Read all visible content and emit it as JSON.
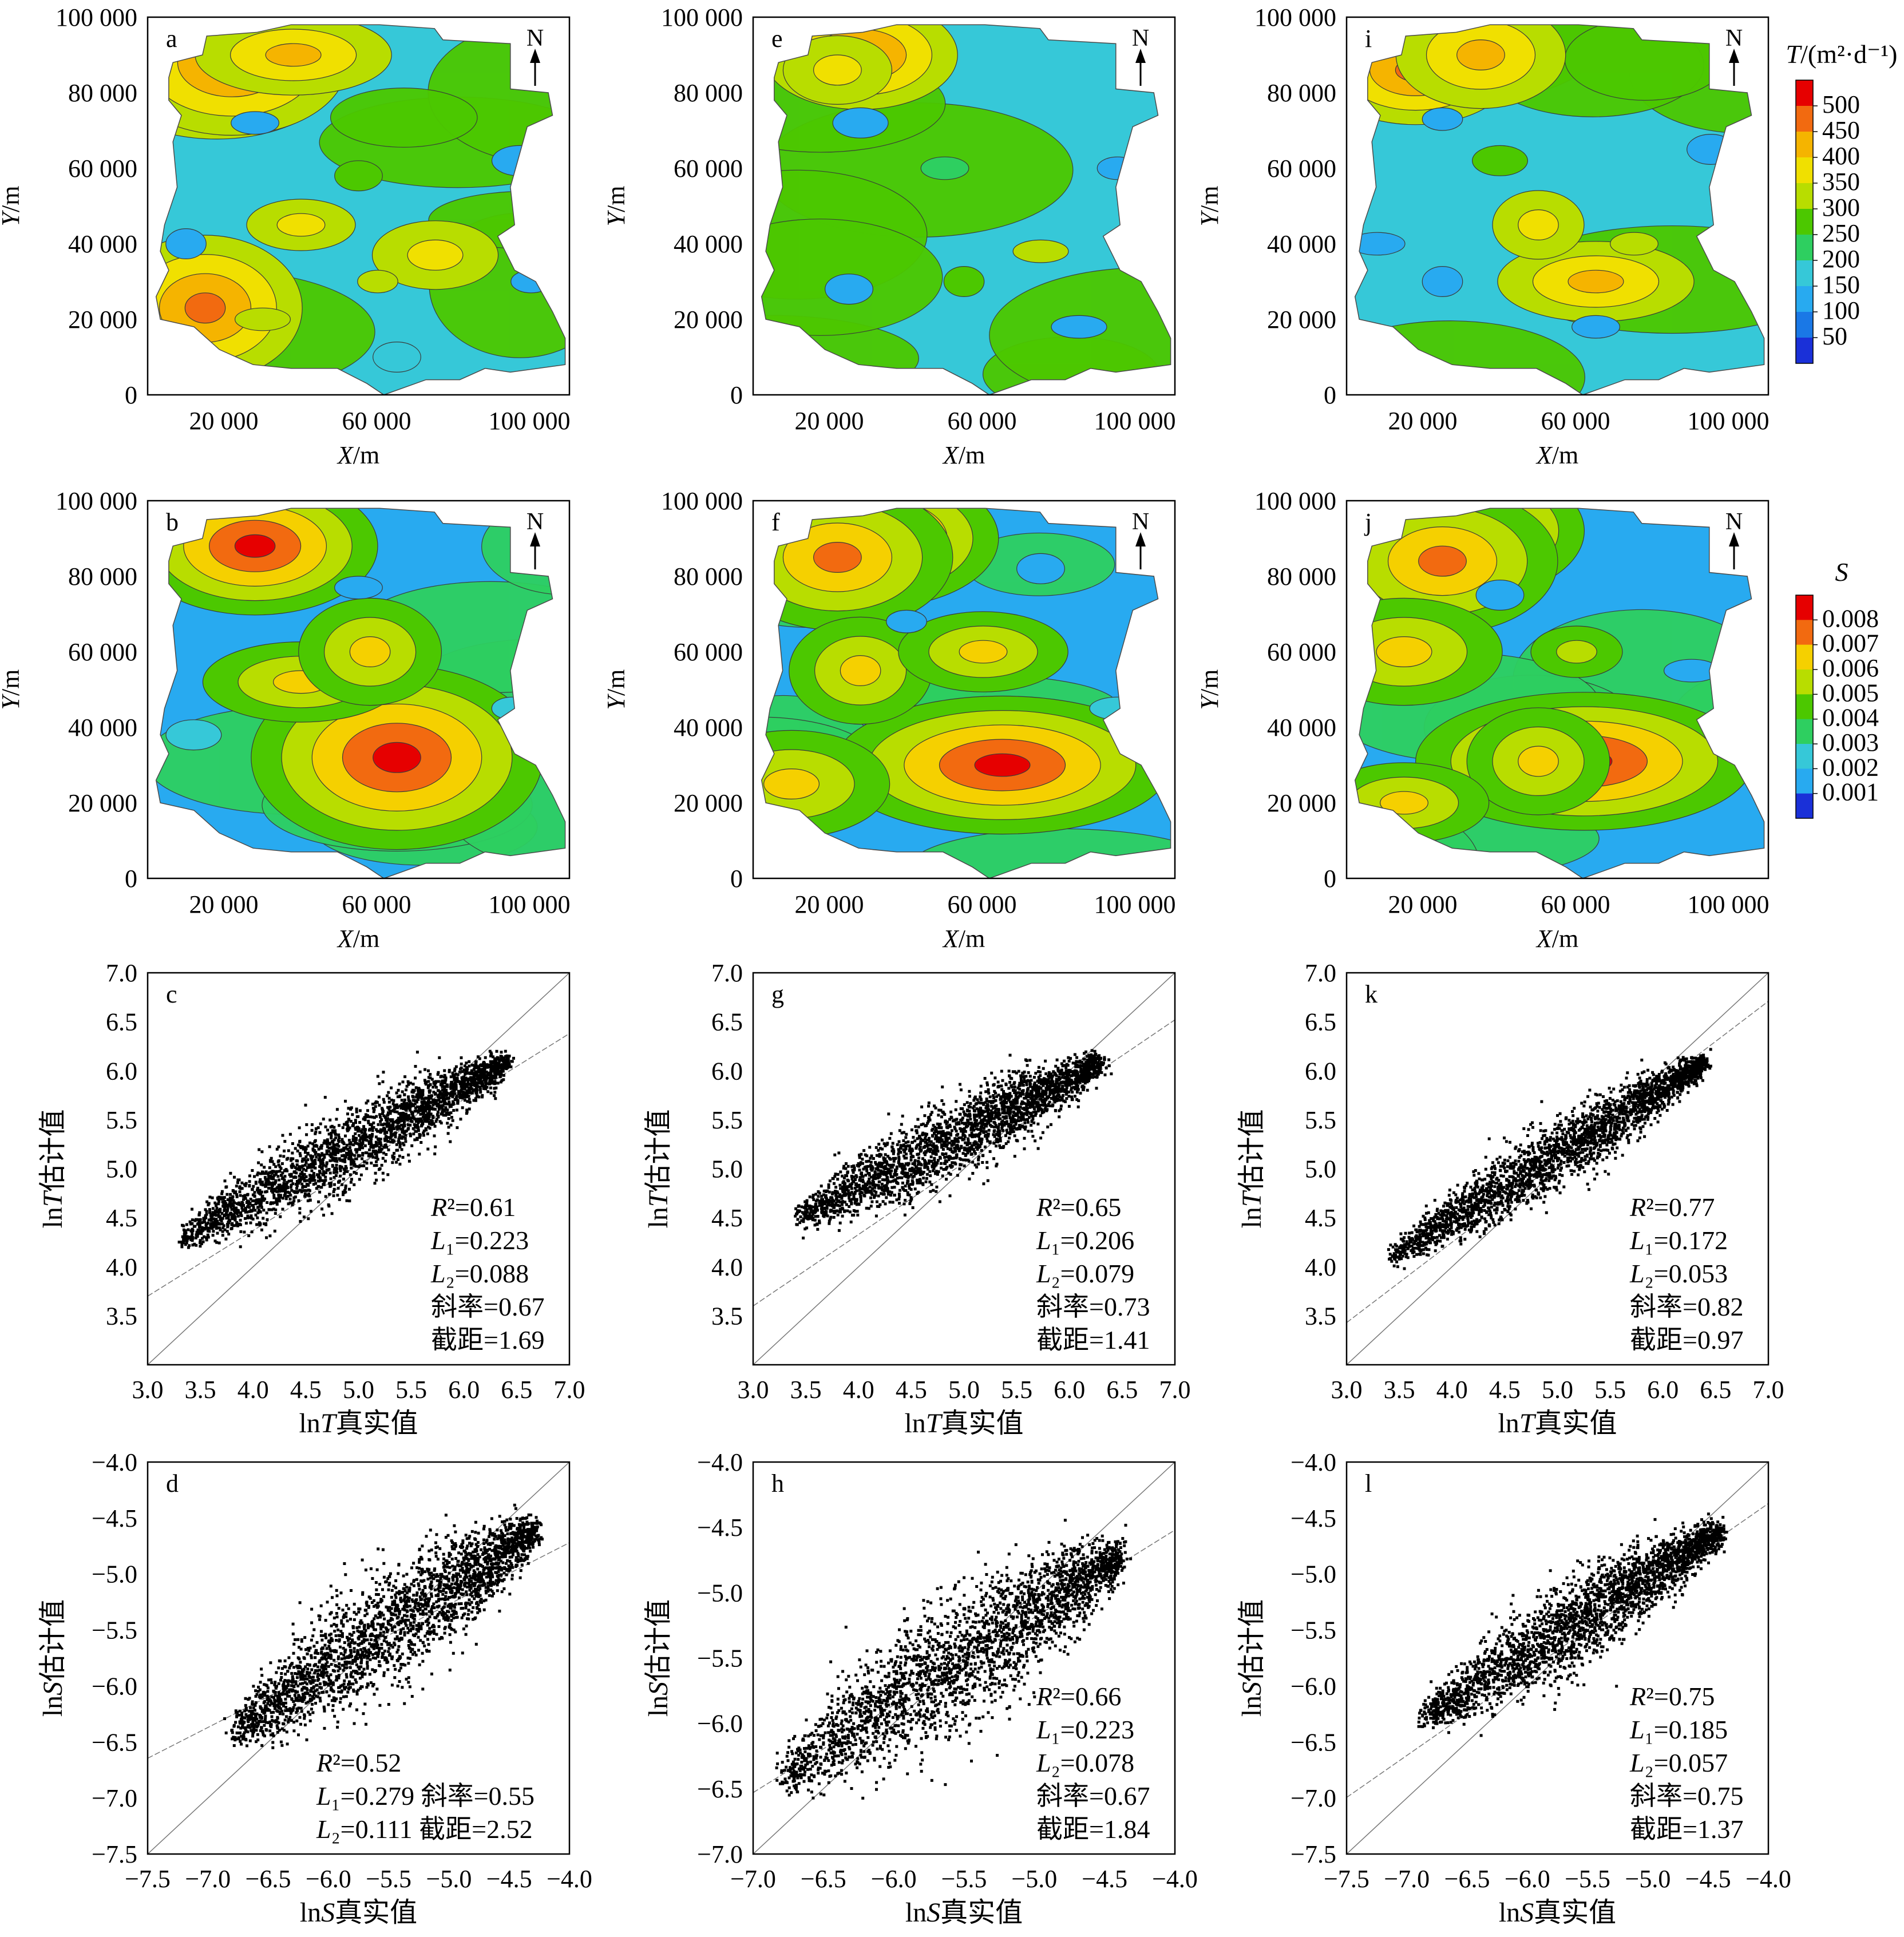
{
  "units": {
    "x": "m",
    "y": "m",
    "x_var": "X",
    "y_var": "Y",
    "t_var": "ln T",
    "s_var": "ln S",
    "est_suffix": "估计值",
    "true_suffix": "真实值"
  },
  "north_label": "N",
  "colorbars": [
    {
      "title_var": "T",
      "title_unit": "(m²·d⁻¹)",
      "title": "T/(m²·d⁻¹)",
      "ticks": [
        "500",
        "450",
        "400",
        "350",
        "300",
        "250",
        "200",
        "150",
        "100",
        "50"
      ],
      "colors": [
        "#e60000",
        "#f26a10",
        "#f5b400",
        "#f0e000",
        "#b8dd00",
        "#4cc800",
        "#2ecf60",
        "#36c8d8",
        "#28aaf0",
        "#1a78e6",
        "#1a30d8"
      ]
    },
    {
      "title_var": "S",
      "title": "S",
      "ticks": [
        "0.008",
        "0.007",
        "0.006",
        "0.005",
        "0.004",
        "0.003",
        "0.002",
        "0.001"
      ],
      "colors": [
        "#e60000",
        "#f26a10",
        "#f5d000",
        "#b8dd00",
        "#4cc800",
        "#2ecf60",
        "#36c8d8",
        "#28aaf0",
        "#1a30d8"
      ]
    }
  ],
  "chart_data": [
    {
      "panel": "a",
      "type": "heatmap",
      "field": "T",
      "colormap": "T",
      "xlabel": "X/m",
      "ylabel": "Y/m",
      "x_ticks": [
        "20 000",
        "60 000",
        "100 000"
      ],
      "y_ticks": [
        "100 000",
        "80 000",
        "60 000",
        "40 000",
        "20 000",
        "0"
      ],
      "xlim": [
        0,
        110000
      ],
      "ylim": [
        0,
        100000
      ],
      "zones": [
        {
          "x": 18000,
          "y": 86000,
          "value": 500
        },
        {
          "x": 22000,
          "y": 88000,
          "value": 450
        },
        {
          "x": 38000,
          "y": 90000,
          "value": 400
        },
        {
          "x": 15000,
          "y": 23000,
          "value": 450
        },
        {
          "x": 40000,
          "y": 45000,
          "value": 350
        },
        {
          "x": 75000,
          "y": 37000,
          "value": 350
        },
        {
          "x": 60000,
          "y": 30000,
          "value": 300
        },
        {
          "x": 55000,
          "y": 58000,
          "value": 250
        },
        {
          "x": 30000,
          "y": 20000,
          "value": 300
        },
        {
          "x": 10000,
          "y": 40000,
          "value": 100
        },
        {
          "x": 28000,
          "y": 72000,
          "value": 100
        },
        {
          "x": 97000,
          "y": 62000,
          "value": 100
        },
        {
          "x": 100000,
          "y": 30000,
          "value": 100
        },
        {
          "x": 65000,
          "y": 10000,
          "value": 150
        }
      ]
    },
    {
      "panel": "b",
      "type": "heatmap",
      "field": "S",
      "colormap": "S",
      "xlabel": "X/m",
      "ylabel": "Y/m",
      "x_ticks": [
        "20 000",
        "60 000",
        "100 000"
      ],
      "y_ticks": [
        "100 000",
        "80 000",
        "60 000",
        "40 000",
        "20 000",
        "0"
      ],
      "xlim": [
        0,
        110000
      ],
      "ylim": [
        0,
        100000
      ],
      "zones": [
        {
          "x": 28000,
          "y": 88000,
          "value": 0.0085
        },
        {
          "x": 65000,
          "y": 32000,
          "value": 0.0085
        },
        {
          "x": 40000,
          "y": 52000,
          "value": 0.006
        },
        {
          "x": 58000,
          "y": 60000,
          "value": 0.006
        },
        {
          "x": 55000,
          "y": 77000,
          "value": 0.0015
        },
        {
          "x": 12000,
          "y": 38000,
          "value": 0.002
        },
        {
          "x": 95000,
          "y": 45000,
          "value": 0.002
        }
      ]
    },
    {
      "panel": "c",
      "type": "scatter",
      "variable": "T",
      "xlabel": "lnT真实值",
      "ylabel": "lnT估计值",
      "xlim": [
        3.0,
        7.0
      ],
      "ylim": [
        3.0,
        7.0
      ],
      "x_ticks": [
        "3.0",
        "3.5",
        "4.0",
        "4.5",
        "5.0",
        "5.5",
        "6.0",
        "6.5",
        "7.0"
      ],
      "y_ticks": [
        "7.0",
        "6.5",
        "6.0",
        "5.5",
        "5.0",
        "4.5",
        "4.0",
        "3.5"
      ],
      "points_from": [
        3.3,
        4.3
      ],
      "points_to": [
        6.4,
        6.1
      ],
      "point_spread": 0.35,
      "fit_slope": 0.67,
      "fit_intercept": 1.69,
      "stats": {
        "R2": "0.61",
        "L1": "0.223",
        "L2": "0.088",
        "slope": "0.67",
        "intercept": "1.69"
      },
      "stat_lines": [
        "R²=0.61",
        "L₁=0.223",
        "L₂=0.088",
        "斜率=0.67",
        "截距=1.69"
      ]
    },
    {
      "panel": "d",
      "type": "scatter",
      "variable": "S",
      "xlabel": "lnS真实值",
      "ylabel": "lnS估计值",
      "xlim": [
        -7.5,
        -4.0
      ],
      "ylim": [
        -7.5,
        -4.0
      ],
      "x_ticks": [
        "-7.5",
        "-7.0",
        "-6.5",
        "-6.0",
        "-5.5",
        "-5.0",
        "-4.5",
        "-4.0"
      ],
      "y_ticks": [
        "-4.0",
        "-4.5",
        "-5.0",
        "-5.5",
        "-6.0",
        "-6.5",
        "-7.0",
        "-7.5"
      ],
      "points_from": [
        -6.8,
        -6.4
      ],
      "points_to": [
        -4.3,
        -4.6
      ],
      "point_spread": 0.45,
      "fit_slope": 0.55,
      "fit_intercept": -2.52,
      "stats": {
        "R2": "0.52",
        "L1": "0.279",
        "L2": "0.111",
        "slope": "0.55",
        "intercept": "2.52"
      },
      "stat_lines": [
        "R²=0.52",
        "L₁=0.279  斜率=0.55",
        "L₂=0.111  截距=2.52"
      ]
    },
    {
      "panel": "e",
      "type": "heatmap",
      "field": "T",
      "colormap": "T",
      "xlabel": "X/m",
      "ylabel": "Y/m",
      "x_ticks": [
        "20 000",
        "60 000",
        "100 000"
      ],
      "y_ticks": [
        "100 000",
        "80 000",
        "60 000",
        "40 000",
        "20 000",
        "0"
      ],
      "xlim": [
        0,
        110000
      ],
      "ylim": [
        0,
        100000
      ],
      "zones": [
        {
          "x": 28000,
          "y": 90000,
          "value": 450
        },
        {
          "x": 22000,
          "y": 86000,
          "value": 350
        },
        {
          "x": 75000,
          "y": 38000,
          "value": 300
        },
        {
          "x": 55000,
          "y": 30000,
          "value": 250
        },
        {
          "x": 50000,
          "y": 60000,
          "value": 200
        },
        {
          "x": 28000,
          "y": 72000,
          "value": 100
        },
        {
          "x": 95000,
          "y": 60000,
          "value": 100
        },
        {
          "x": 25000,
          "y": 28000,
          "value": 100
        },
        {
          "x": 85000,
          "y": 18000,
          "value": 100
        }
      ]
    },
    {
      "panel": "f",
      "type": "heatmap",
      "field": "S",
      "colormap": "S",
      "xlabel": "X/m",
      "ylabel": "Y/m",
      "x_ticks": [
        "20 000",
        "60 000",
        "100 000"
      ],
      "y_ticks": [
        "100 000",
        "80 000",
        "60 000",
        "40 000",
        "20 000",
        "0"
      ],
      "xlim": [
        0,
        110000
      ],
      "ylim": [
        0,
        100000
      ],
      "zones": [
        {
          "x": 32000,
          "y": 90000,
          "value": 0.0085
        },
        {
          "x": 22000,
          "y": 85000,
          "value": 0.007
        },
        {
          "x": 65000,
          "y": 30000,
          "value": 0.0085
        },
        {
          "x": 28000,
          "y": 55000,
          "value": 0.006
        },
        {
          "x": 60000,
          "y": 60000,
          "value": 0.006
        },
        {
          "x": 10000,
          "y": 25000,
          "value": 0.006
        },
        {
          "x": 40000,
          "y": 68000,
          "value": 0.0015
        },
        {
          "x": 75000,
          "y": 82000,
          "value": 0.0015
        },
        {
          "x": 95000,
          "y": 45000,
          "value": 0.002
        }
      ]
    },
    {
      "panel": "g",
      "type": "scatter",
      "variable": "T",
      "xlabel": "lnT真实值",
      "ylabel": "lnT估计值",
      "xlim": [
        3.0,
        7.0
      ],
      "ylim": [
        3.0,
        7.0
      ],
      "x_ticks": [
        "3.0",
        "3.5",
        "4.0",
        "4.5",
        "5.0",
        "5.5",
        "6.0",
        "6.5",
        "7.0"
      ],
      "y_ticks": [
        "7.0",
        "6.5",
        "6.0",
        "5.5",
        "5.0",
        "4.5",
        "4.0",
        "3.5"
      ],
      "points_from": [
        3.4,
        4.5
      ],
      "points_to": [
        6.3,
        6.1
      ],
      "point_spread": 0.35,
      "fit_slope": 0.73,
      "fit_intercept": 1.41,
      "stats": {
        "R2": "0.65",
        "L1": "0.206",
        "L2": "0.079",
        "slope": "0.73",
        "intercept": "1.41"
      },
      "stat_lines": [
        "R²=0.65",
        "L₁=0.206",
        "L₂=0.079",
        "斜率=0.73",
        "截距=1.41"
      ]
    },
    {
      "panel": "h",
      "type": "scatter",
      "variable": "S",
      "xlabel": "lnS真实值",
      "ylabel": "lnS估计值",
      "xlim": [
        -7.0,
        -4.0
      ],
      "ylim": [
        -7.0,
        -4.0
      ],
      "x_ticks": [
        "-7.0",
        "-6.5",
        "-6.0",
        "-5.5",
        "-5.0",
        "-4.5",
        "-4.0"
      ],
      "y_ticks": [
        "-4.0",
        "-4.5",
        "-5.0",
        "-5.5",
        "-6.0",
        "-6.5",
        "-7.0"
      ],
      "points_from": [
        -6.8,
        -6.4
      ],
      "points_to": [
        -4.4,
        -4.7
      ],
      "point_spread": 0.45,
      "fit_slope": 0.67,
      "fit_intercept": -1.84,
      "stats": {
        "R2": "0.66",
        "L1": "0.223",
        "L2": "0.078",
        "slope": "0.67",
        "intercept": "1.84"
      },
      "stat_lines": [
        "R²=0.66",
        "L₁=0.223",
        "L₂=0.078",
        "斜率=0.67",
        "截距=1.84"
      ]
    },
    {
      "panel": "i",
      "type": "heatmap",
      "field": "T",
      "colormap": "T",
      "xlabel": "X/m",
      "ylabel": "Y/m",
      "x_ticks": [
        "20 000",
        "60 000",
        "100 000"
      ],
      "y_ticks": [
        "100 000",
        "80 000",
        "60 000",
        "40 000",
        "20 000",
        "0"
      ],
      "xlim": [
        0,
        110000
      ],
      "ylim": [
        0,
        100000
      ],
      "zones": [
        {
          "x": 18000,
          "y": 86000,
          "value": 450
        },
        {
          "x": 35000,
          "y": 90000,
          "value": 400
        },
        {
          "x": 65000,
          "y": 30000,
          "value": 400
        },
        {
          "x": 50000,
          "y": 45000,
          "value": 350
        },
        {
          "x": 75000,
          "y": 40000,
          "value": 300
        },
        {
          "x": 40000,
          "y": 62000,
          "value": 250
        },
        {
          "x": 25000,
          "y": 73000,
          "value": 100
        },
        {
          "x": 95000,
          "y": 65000,
          "value": 100
        },
        {
          "x": 8000,
          "y": 40000,
          "value": 100
        },
        {
          "x": 25000,
          "y": 30000,
          "value": 100
        },
        {
          "x": 65000,
          "y": 18000,
          "value": 100
        }
      ]
    },
    {
      "panel": "j",
      "type": "heatmap",
      "field": "S",
      "colormap": "S",
      "xlabel": "X/m",
      "ylabel": "Y/m",
      "x_ticks": [
        "20 000",
        "60 000",
        "100 000"
      ],
      "y_ticks": [
        "100 000",
        "80 000",
        "60 000",
        "40 000",
        "20 000",
        "0"
      ],
      "xlim": [
        0,
        110000
      ],
      "ylim": [
        0,
        100000
      ],
      "zones": [
        {
          "x": 30000,
          "y": 92000,
          "value": 0.0085
        },
        {
          "x": 25000,
          "y": 84000,
          "value": 0.007
        },
        {
          "x": 62000,
          "y": 31000,
          "value": 0.0085
        },
        {
          "x": 50000,
          "y": 31000,
          "value": 0.006
        },
        {
          "x": 15000,
          "y": 20000,
          "value": 0.006
        },
        {
          "x": 15000,
          "y": 60000,
          "value": 0.006
        },
        {
          "x": 60000,
          "y": 60000,
          "value": 0.005
        },
        {
          "x": 40000,
          "y": 75000,
          "value": 0.0015
        },
        {
          "x": 90000,
          "y": 55000,
          "value": 0.0015
        }
      ]
    },
    {
      "panel": "k",
      "type": "scatter",
      "variable": "T",
      "xlabel": "lnT真实值",
      "ylabel": "lnT估计值",
      "xlim": [
        3.0,
        7.0
      ],
      "ylim": [
        3.0,
        7.0
      ],
      "x_ticks": [
        "3.0",
        "3.5",
        "4.0",
        "4.5",
        "5.0",
        "5.5",
        "6.0",
        "6.5",
        "7.0"
      ],
      "y_ticks": [
        "7.0",
        "6.5",
        "6.0",
        "5.5",
        "5.0",
        "4.5",
        "4.0",
        "3.5"
      ],
      "points_from": [
        3.4,
        4.1
      ],
      "points_to": [
        6.4,
        6.1
      ],
      "point_spread": 0.3,
      "fit_slope": 0.82,
      "fit_intercept": 0.97,
      "stats": {
        "R2": "0.77",
        "L1": "0.172",
        "L2": "0.053",
        "slope": "0.82",
        "intercept": "0.97"
      },
      "stat_lines": [
        "R²=0.77",
        "L₁=0.172",
        "L₂=0.053",
        "斜率=0.82",
        "截距=0.97"
      ]
    },
    {
      "panel": "l",
      "type": "scatter",
      "variable": "S",
      "xlabel": "lnS真实值",
      "ylabel": "lnS估计值",
      "xlim": [
        -7.5,
        -4.0
      ],
      "ylim": [
        -7.5,
        -4.0
      ],
      "x_ticks": [
        "-7.5",
        "-7.0",
        "-6.5",
        "-6.0",
        "-5.5",
        "-5.0",
        "-4.5",
        "-4.0"
      ],
      "y_ticks": [
        "-4.0",
        "-4.5",
        "-5.0",
        "-5.5",
        "-6.0",
        "-6.5",
        "-7.0",
        "-7.5"
      ],
      "points_from": [
        -6.9,
        -6.3
      ],
      "points_to": [
        -4.4,
        -4.6
      ],
      "point_spread": 0.35,
      "fit_slope": 0.75,
      "fit_intercept": -1.37,
      "stats": {
        "R2": "0.75",
        "L1": "0.185",
        "L2": "0.057",
        "slope": "0.75",
        "intercept": "1.37"
      },
      "stat_lines": [
        "R²=0.75",
        "L₁=0.185",
        "L₂=0.057",
        "斜率=0.75",
        "截距=1.37"
      ]
    }
  ]
}
